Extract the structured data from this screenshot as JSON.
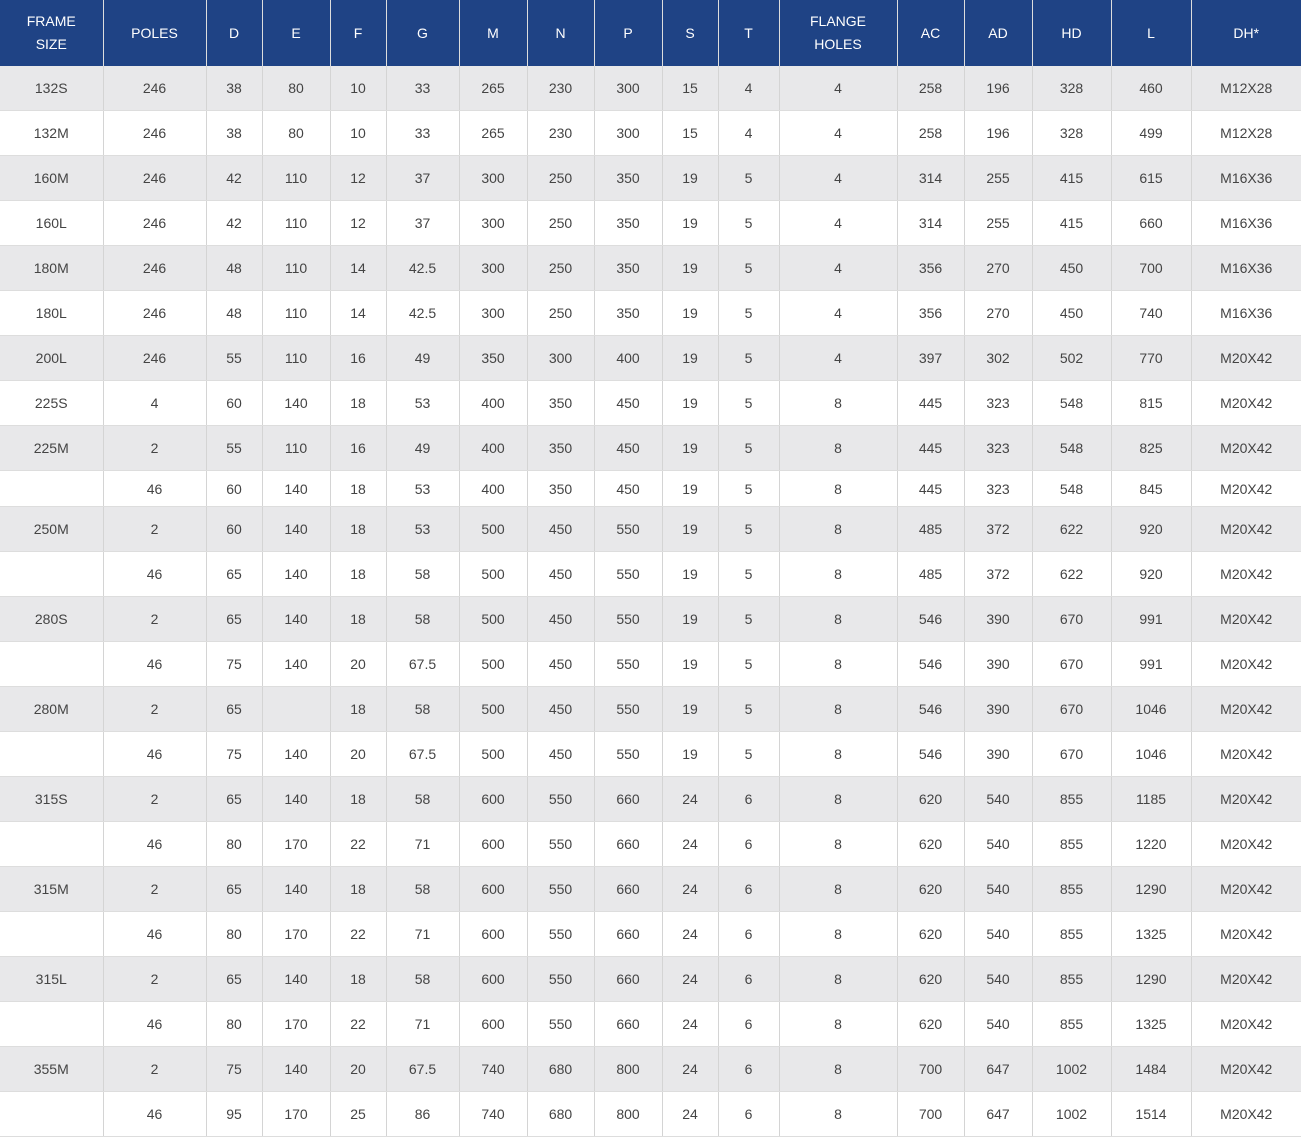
{
  "table": {
    "header": [
      "FRAME SIZE",
      "POLES",
      "D",
      "E",
      "F",
      "G",
      "M",
      "N",
      "P",
      "S",
      "T",
      "FLANGE HOLES",
      "AC",
      "AD",
      "HD",
      "L",
      "DH*"
    ],
    "rows": [
      [
        "132S",
        "246",
        "38",
        "80",
        "10",
        "33",
        "265",
        "230",
        "300",
        "15",
        "4",
        "4",
        "258",
        "196",
        "328",
        "460",
        "M12X28"
      ],
      [
        "132M",
        "246",
        "38",
        "80",
        "10",
        "33",
        "265",
        "230",
        "300",
        "15",
        "4",
        "4",
        "258",
        "196",
        "328",
        "499",
        "M12X28"
      ],
      [
        "160M",
        "246",
        "42",
        "110",
        "12",
        "37",
        "300",
        "250",
        "350",
        "19",
        "5",
        "4",
        "314",
        "255",
        "415",
        "615",
        "M16X36"
      ],
      [
        "160L",
        "246",
        "42",
        "110",
        "12",
        "37",
        "300",
        "250",
        "350",
        "19",
        "5",
        "4",
        "314",
        "255",
        "415",
        "660",
        "M16X36"
      ],
      [
        "180M",
        "246",
        "48",
        "110",
        "14",
        "42.5",
        "300",
        "250",
        "350",
        "19",
        "5",
        "4",
        "356",
        "270",
        "450",
        "700",
        "M16X36"
      ],
      [
        "180L",
        "246",
        "48",
        "110",
        "14",
        "42.5",
        "300",
        "250",
        "350",
        "19",
        "5",
        "4",
        "356",
        "270",
        "450",
        "740",
        "M16X36"
      ],
      [
        "200L",
        "246",
        "55",
        "110",
        "16",
        "49",
        "350",
        "300",
        "400",
        "19",
        "5",
        "4",
        "397",
        "302",
        "502",
        "770",
        "M20X42"
      ],
      [
        "225S",
        "4",
        "60",
        "140",
        "18",
        "53",
        "400",
        "350",
        "450",
        "19",
        "5",
        "8",
        "445",
        "323",
        "548",
        "815",
        "M20X42"
      ],
      [
        "225M",
        "2",
        "55",
        "110",
        "16",
        "49",
        "400",
        "350",
        "450",
        "19",
        "5",
        "8",
        "445",
        "323",
        "548",
        "825",
        "M20X42"
      ],
      [
        null,
        "46",
        "60",
        "140",
        "18",
        "53",
        "400",
        "350",
        "450",
        "19",
        "5",
        "8",
        "445",
        "323",
        "548",
        "845",
        "M20X42"
      ],
      [
        "250M",
        "2",
        "60",
        "140",
        "18",
        "53",
        "500",
        "450",
        "550",
        "19",
        "5",
        "8",
        "485",
        "372",
        "622",
        "920",
        "M20X42"
      ],
      [
        null,
        "46",
        "65",
        "140",
        "18",
        "58",
        "500",
        "450",
        "550",
        "19",
        "5",
        "8",
        "485",
        "372",
        "622",
        "920",
        "M20X42"
      ],
      [
        "280S",
        "2",
        "65",
        "140",
        "18",
        "58",
        "500",
        "450",
        "550",
        "19",
        "5",
        "8",
        "546",
        "390",
        "670",
        "991",
        "M20X42"
      ],
      [
        null,
        "46",
        "75",
        "140",
        "20",
        "67.5",
        "500",
        "450",
        "550",
        "19",
        "5",
        "8",
        "546",
        "390",
        "670",
        "991",
        "M20X42"
      ],
      [
        "280M",
        "2",
        "65",
        null,
        "18",
        "58",
        "500",
        "450",
        "550",
        "19",
        "5",
        "8",
        "546",
        "390",
        "670",
        "1046",
        "M20X42"
      ],
      [
        null,
        "46",
        "75",
        "140",
        "20",
        "67.5",
        "500",
        "450",
        "550",
        "19",
        "5",
        "8",
        "546",
        "390",
        "670",
        "1046",
        "M20X42"
      ],
      [
        "315S",
        "2",
        "65",
        "140",
        "18",
        "58",
        "600",
        "550",
        "660",
        "24",
        "6",
        "8",
        "620",
        "540",
        "855",
        "1185",
        "M20X42"
      ],
      [
        null,
        "46",
        "80",
        "170",
        "22",
        "71",
        "600",
        "550",
        "660",
        "24",
        "6",
        "8",
        "620",
        "540",
        "855",
        "1220",
        "M20X42"
      ],
      [
        "315M",
        "2",
        "65",
        "140",
        "18",
        "58",
        "600",
        "550",
        "660",
        "24",
        "6",
        "8",
        "620",
        "540",
        "855",
        "1290",
        "M20X42"
      ],
      [
        null,
        "46",
        "80",
        "170",
        "22",
        "71",
        "600",
        "550",
        "660",
        "24",
        "6",
        "8",
        "620",
        "540",
        "855",
        "1325",
        "M20X42"
      ],
      [
        "315L",
        "2",
        "65",
        "140",
        "18",
        "58",
        "600",
        "550",
        "660",
        "24",
        "6",
        "8",
        "620",
        "540",
        "855",
        "1290",
        "M20X42"
      ],
      [
        null,
        "46",
        "80",
        "170",
        "22",
        "71",
        "600",
        "550",
        "660",
        "24",
        "6",
        "8",
        "620",
        "540",
        "855",
        "1325",
        "M20X42"
      ],
      [
        "355M",
        "2",
        "75",
        "140",
        "20",
        "67.5",
        "740",
        "680",
        "800",
        "24",
        "6",
        "8",
        "700",
        "647",
        "1002",
        "1484",
        "M20X42"
      ],
      [
        null,
        "46",
        "95",
        "170",
        "25",
        "86",
        "740",
        "680",
        "800",
        "24",
        "6",
        "8",
        "700",
        "647",
        "1002",
        "1514",
        "M20X42"
      ]
    ]
  }
}
